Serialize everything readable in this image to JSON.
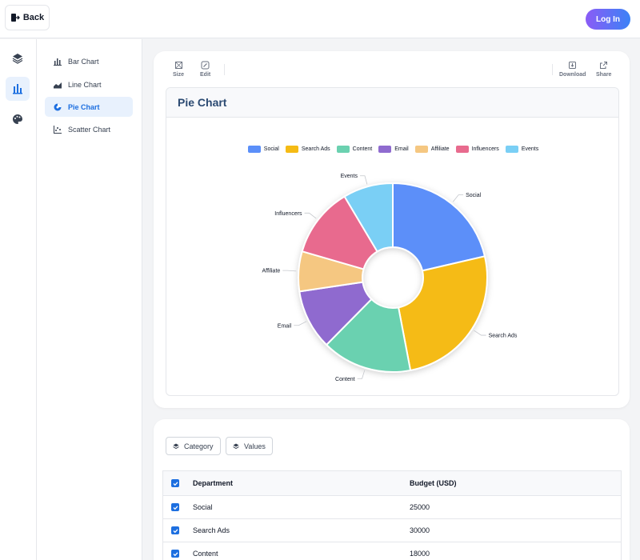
{
  "topbar": {
    "back_label": "Back",
    "login_label": "Log In"
  },
  "rail": {
    "items": [
      "layers-icon",
      "bar-chart-icon",
      "palette-icon"
    ],
    "active_index": 1
  },
  "chart_types": {
    "items": [
      {
        "label": "Bar Chart",
        "icon": "bar-chart-icon"
      },
      {
        "label": "Line Chart",
        "icon": "line-chart-icon"
      },
      {
        "label": "Pie Chart",
        "icon": "pie-chart-icon"
      },
      {
        "label": "Scatter Chart",
        "icon": "scatter-chart-icon"
      }
    ],
    "active_index": 2
  },
  "toolbar": {
    "size_label": "Size",
    "edit_label": "Edit",
    "download_label": "Download",
    "share_label": "Share"
  },
  "chart_panel": {
    "title": "Pie Chart"
  },
  "chart_data": {
    "type": "pie",
    "donut": true,
    "categories": [
      "Social",
      "Search Ads",
      "Content",
      "Email",
      "Affiliate",
      "Influencers",
      "Events"
    ],
    "values": [
      25000,
      30000,
      18000,
      12000,
      8000,
      14000,
      10000
    ],
    "colors": [
      "#5b8ff9",
      "#f5bb15",
      "#6bd1b0",
      "#8f6bcf",
      "#f5c781",
      "#e86b8e",
      "#7acff5"
    ],
    "legend_position": "top"
  },
  "table": {
    "chips": [
      "Category",
      "Values"
    ],
    "headers": [
      "Department",
      "Budget (USD)"
    ],
    "rows": [
      [
        "Social",
        "25000"
      ],
      [
        "Search Ads",
        "30000"
      ],
      [
        "Content",
        "18000"
      ]
    ]
  }
}
